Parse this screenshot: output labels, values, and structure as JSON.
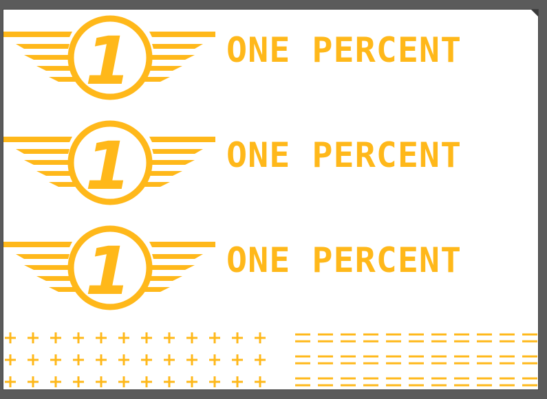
{
  "artboard": {
    "background": "#ffffff",
    "workspace_color": "#5b5b5b"
  },
  "brand": {
    "color": "#ffb81a",
    "emblem_numeral": "1",
    "wordmark": "ONE PERCENT"
  },
  "logos": [
    {
      "numeral": "1",
      "wordmark": "ONE PERCENT"
    },
    {
      "numeral": "1",
      "wordmark": "ONE PERCENT"
    },
    {
      "numeral": "1",
      "wordmark": "ONE PERCENT"
    }
  ],
  "patterns": {
    "plus_glyph": "+",
    "dash_glyph": "—",
    "plus_rows": 3,
    "dash_rows": 3
  }
}
